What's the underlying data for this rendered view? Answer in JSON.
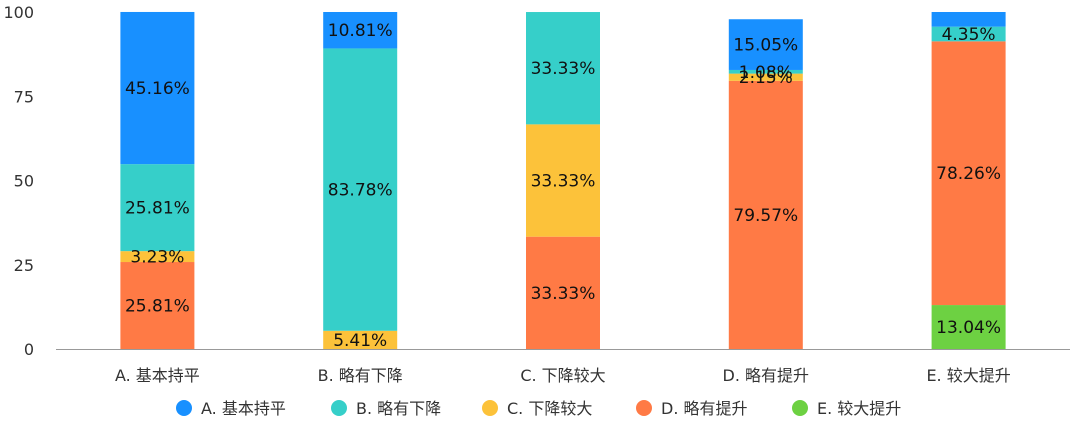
{
  "chart_data": {
    "type": "bar",
    "stacked": true,
    "categories": [
      "A. 基本持平",
      "B. 略有下降",
      "C. 下降较大",
      "D. 略有提升",
      "E. 较大提升"
    ],
    "series": [
      {
        "name": "E. 较大提升",
        "color": "#6dd142",
        "values": [
          0,
          0,
          0,
          0,
          13.04
        ],
        "labels": [
          "",
          "",
          "",
          "",
          "13.04%"
        ]
      },
      {
        "name": "D. 略有提升",
        "color": "#ff7a45",
        "values": [
          25.81,
          0,
          33.33,
          79.57,
          78.26
        ],
        "labels": [
          "25.81%",
          "",
          "33.33%",
          "79.57%",
          "78.26%"
        ]
      },
      {
        "name": "C. 下降较大",
        "color": "#fcc23a",
        "values": [
          3.23,
          5.41,
          33.33,
          2.15,
          0
        ],
        "labels": [
          "3.23%",
          "5.41%",
          "33.33%",
          "2.15%",
          ""
        ]
      },
      {
        "name": "B. 略有下降",
        "color": "#36cfc9",
        "values": [
          25.81,
          83.78,
          33.33,
          1.08,
          4.35
        ],
        "labels": [
          "25.81%",
          "83.78%",
          "33.33%",
          "1.08%",
          "4.35%"
        ]
      },
      {
        "name": "A. 基本持平",
        "color": "#1890ff",
        "values": [
          45.16,
          10.81,
          0,
          15.05,
          4.35
        ],
        "labels": [
          "45.16%",
          "10.81%",
          "",
          "15.05%",
          ""
        ]
      }
    ],
    "legend_order": [
      "A. 基本持平",
      "B. 略有下降",
      "C. 下降较大",
      "D. 略有提升",
      "E. 较大提升"
    ],
    "yticks": [
      0,
      25,
      50,
      75,
      100
    ],
    "ylim": [
      0,
      100
    ],
    "grid": false,
    "legend_position": "bottom"
  }
}
